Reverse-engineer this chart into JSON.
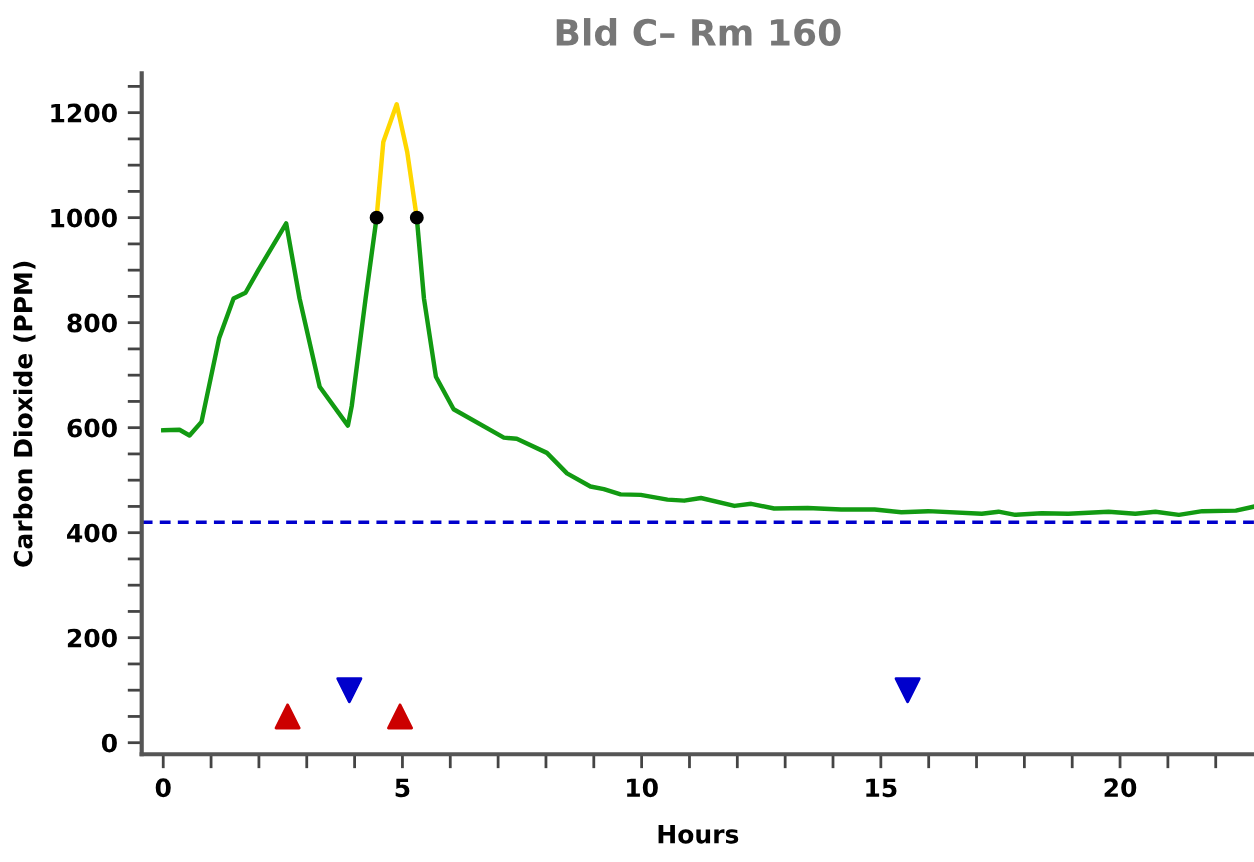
{
  "chart_data": {
    "type": "line",
    "title": "Bld C– Rm 160",
    "xlabel": "Hours",
    "ylabel": "Carbon Dioxide (PPM)",
    "xlim": [
      -0.45,
      22.8
    ],
    "ylim": [
      -22,
      1275
    ],
    "xticks": [
      0,
      {
        "value": 1,
        "label": null
      },
      {
        "value": 2,
        "label": null
      },
      {
        "value": 3,
        "label": null
      },
      {
        "value": 4,
        "label": null
      },
      5,
      {
        "value": 6,
        "label": null
      },
      {
        "value": 7,
        "label": null
      },
      {
        "value": 8,
        "label": null
      },
      {
        "value": 9,
        "label": null
      },
      10,
      {
        "value": 11,
        "label": null
      },
      {
        "value": 12,
        "label": null
      },
      {
        "value": 13,
        "label": null
      },
      {
        "value": 14,
        "label": null
      },
      15,
      {
        "value": 16,
        "label": null
      },
      {
        "value": 17,
        "label": null
      },
      {
        "value": 18,
        "label": null
      },
      {
        "value": 19,
        "label": null
      },
      20,
      {
        "value": 21,
        "label": null
      },
      {
        "value": 22,
        "label": null
      }
    ],
    "yticks": [
      0,
      {
        "value": 50,
        "label": null
      },
      {
        "value": 100,
        "label": null
      },
      {
        "value": 150,
        "label": null
      },
      200,
      {
        "value": 250,
        "label": null
      },
      {
        "value": 300,
        "label": null
      },
      {
        "value": 350,
        "label": null
      },
      400,
      {
        "value": 450,
        "label": null
      },
      {
        "value": 500,
        "label": null
      },
      {
        "value": 550,
        "label": null
      },
      600,
      {
        "value": 650,
        "label": null
      },
      {
        "value": 700,
        "label": null
      },
      {
        "value": 750,
        "label": null
      },
      800,
      {
        "value": 850,
        "label": null
      },
      {
        "value": 900,
        "label": null
      },
      {
        "value": 950,
        "label": null
      },
      1000,
      {
        "value": 1050,
        "label": null
      },
      {
        "value": 1100,
        "label": null
      },
      {
        "value": 1150,
        "label": null
      },
      1200,
      {
        "value": 1250,
        "label": null
      }
    ],
    "grid": false,
    "legend": false,
    "ref_lines": [
      {
        "axis": "y",
        "value": 420,
        "color": "#0000cc",
        "line_style": "dashed"
      }
    ],
    "series": [
      {
        "color": "#129a12",
        "marker": "none",
        "x": [
          0,
          0.34,
          0.55,
          0.8,
          1.17,
          1.47,
          1.72,
          2.0,
          2.57,
          2.85,
          3.27,
          3.86,
          3.94,
          4.23,
          4.46,
          4.88,
          5.3,
          5.45,
          5.7,
          6.07,
          7.12,
          7.39,
          8.02,
          8.44,
          8.93,
          9.21,
          9.56,
          9.98,
          10.54,
          10.89,
          11.24,
          11.94,
          12.29,
          12.77,
          13.47,
          14.17,
          14.87,
          15.43,
          15.99,
          17.11,
          17.46,
          17.81,
          18.36,
          18.92,
          19.76,
          20.32,
          20.74,
          21.23,
          21.72,
          22.42,
          22.77
        ],
        "values": [
          595,
          596,
          585,
          611,
          771,
          846,
          857,
          902,
          989,
          846,
          678,
          604,
          641,
          846,
          1000,
          null,
          1000,
          846,
          697,
          635,
          581,
          579,
          552,
          513,
          488,
          483,
          473,
          472,
          463,
          461,
          466,
          451,
          455,
          446,
          447,
          444,
          444,
          439,
          441,
          436,
          440,
          434,
          437,
          436,
          440,
          436,
          440,
          434,
          441,
          442,
          449
        ]
      },
      {
        "color": "#ffd700",
        "marker": "none",
        "x": [
          4.46,
          4.6,
          4.88,
          5.1,
          5.3
        ],
        "values": [
          1000,
          1144,
          1216,
          1125,
          1000
        ]
      },
      {
        "type": "scatter",
        "color": "#000000",
        "marker": "circle",
        "x": [
          4.46,
          5.3
        ],
        "values": [
          1000,
          1000
        ]
      },
      {
        "type": "scatter",
        "color": "#cc0000",
        "marker": "triangle",
        "x": [
          2.6,
          4.95
        ],
        "values": [
          50,
          50
        ]
      },
      {
        "type": "scatter",
        "color": "#0000cc",
        "marker": "triangle_down",
        "x": [
          3.89,
          15.56
        ],
        "values": [
          100,
          100
        ]
      }
    ]
  }
}
